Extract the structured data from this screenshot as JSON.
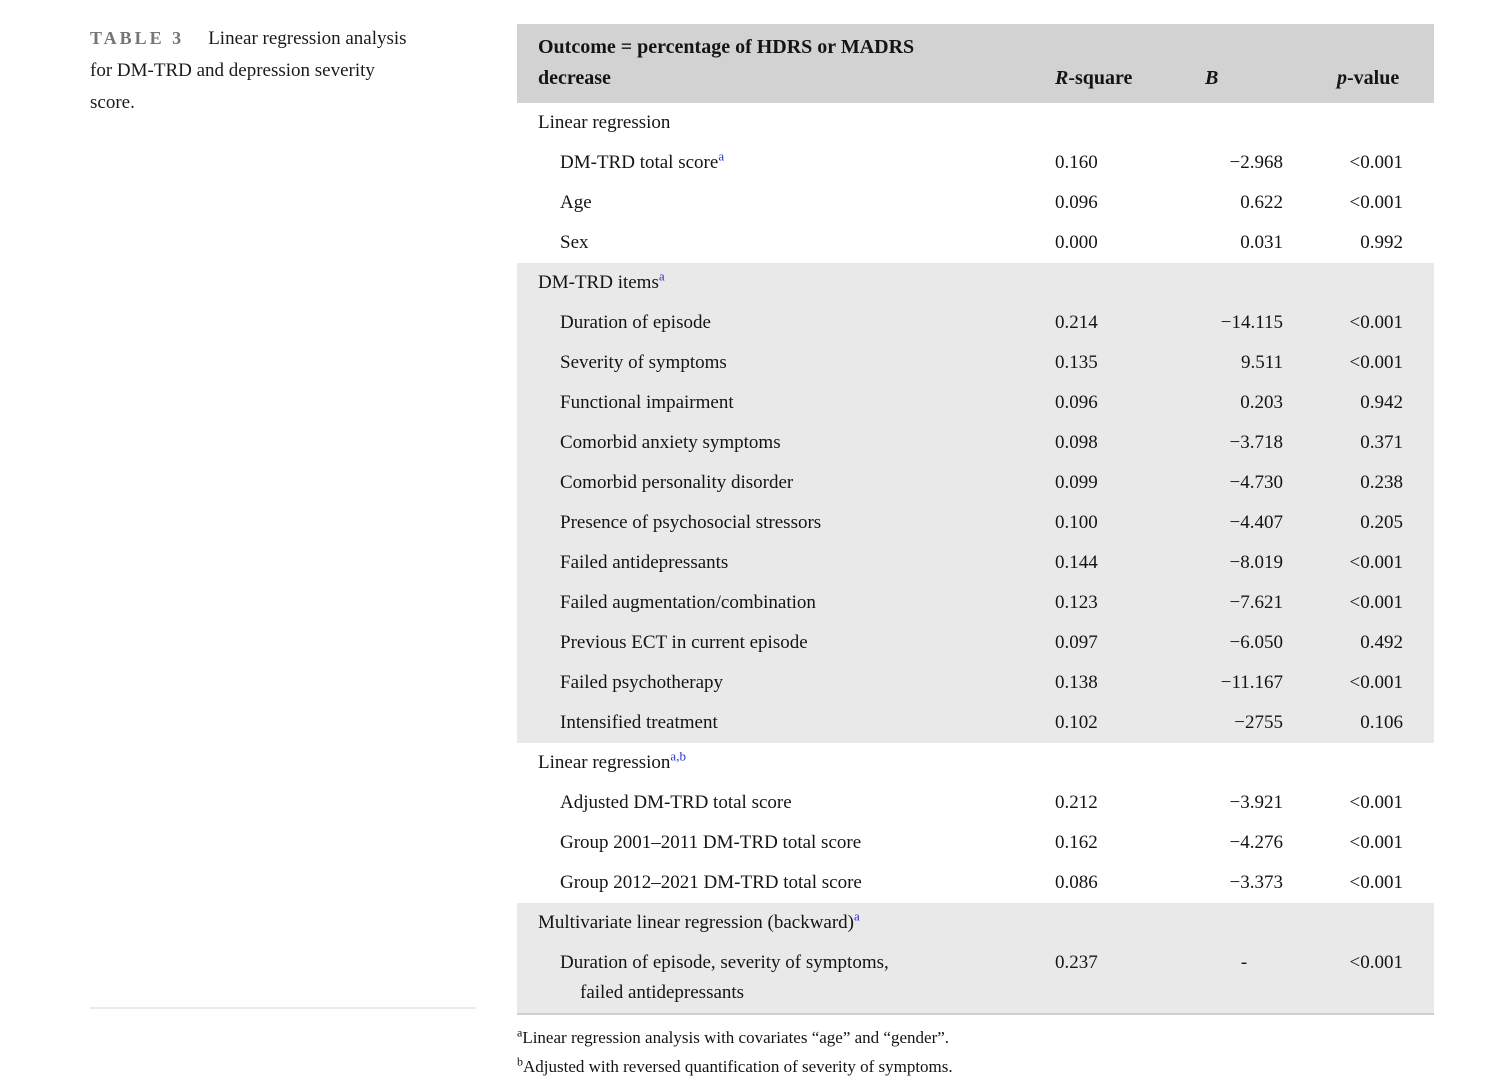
{
  "caption": {
    "tag": "TABLE 3",
    "text": "Linear regression analysis for DM-TRD and depression severity score."
  },
  "table": {
    "header": {
      "outcome_line1": "Outcome = percentage of HDRS or MADRS",
      "outcome_line2": "decrease",
      "col_r": {
        "italic": "R",
        "rest": "-square"
      },
      "col_b": {
        "italic": "B",
        "rest": ""
      },
      "col_p": {
        "italic": "p",
        "rest": "-value"
      }
    },
    "sections": [
      {
        "header": {
          "label": "Linear regression",
          "sup": ""
        },
        "rows": [
          {
            "label": "DM-TRD total score",
            "sup": "a",
            "r": "0.160",
            "b": "−2.968",
            "p": "<0.001"
          },
          {
            "label": "Age",
            "r": "0.096",
            "b": "0.622",
            "p": "<0.001"
          },
          {
            "label": "Sex",
            "r": "0.000",
            "b": "0.031",
            "p": "0.992"
          }
        ]
      },
      {
        "header": {
          "label": "DM-TRD items",
          "sup": "a"
        },
        "rows": [
          {
            "label": "Duration of episode",
            "r": "0.214",
            "b": "−14.115",
            "p": "<0.001"
          },
          {
            "label": "Severity of symptoms",
            "r": "0.135",
            "b": "9.511",
            "p": "<0.001"
          },
          {
            "label": "Functional impairment",
            "r": "0.096",
            "b": "0.203",
            "p": "0.942"
          },
          {
            "label": "Comorbid anxiety symptoms",
            "r": "0.098",
            "b": "−3.718",
            "p": "0.371"
          },
          {
            "label": "Comorbid personality disorder",
            "r": "0.099",
            "b": "−4.730",
            "p": "0.238"
          },
          {
            "label": "Presence of psychosocial stressors",
            "r": "0.100",
            "b": "−4.407",
            "p": "0.205"
          },
          {
            "label": "Failed antidepressants",
            "r": "0.144",
            "b": "−8.019",
            "p": "<0.001"
          },
          {
            "label": "Failed augmentation/combination",
            "r": "0.123",
            "b": "−7.621",
            "p": "<0.001"
          },
          {
            "label": "Previous ECT in current episode",
            "r": "0.097",
            "b": "−6.050",
            "p": "0.492"
          },
          {
            "label": "Failed psychotherapy",
            "r": "0.138",
            "b": "−11.167",
            "p": "<0.001"
          },
          {
            "label": "Intensified treatment",
            "r": "0.102",
            "b": "−2755",
            "p": "0.106"
          }
        ]
      },
      {
        "header": {
          "label": "Linear regression",
          "sup": "a,b"
        },
        "rows": [
          {
            "label": "Adjusted DM-TRD total score",
            "r": "0.212",
            "b": "−3.921",
            "p": "<0.001"
          },
          {
            "label": "Group 2001–2011 DM-TRD total score",
            "r": "0.162",
            "b": "−4.276",
            "p": "<0.001"
          },
          {
            "label": "Group 2012–2021 DM-TRD total score",
            "r": "0.086",
            "b": "−3.373",
            "p": "<0.001"
          }
        ]
      },
      {
        "header": {
          "label": "Multivariate linear regression (backward)",
          "sup": "a"
        },
        "rows": [
          {
            "label": "Duration of episode, severity of symptoms,",
            "label2": "failed antidepressants",
            "r": "0.237",
            "b": "-",
            "p": "<0.001"
          }
        ]
      }
    ]
  },
  "footnotes": [
    {
      "sup": "a",
      "text": "Linear regression analysis with covariates “age” and “gender”."
    },
    {
      "sup": "b",
      "text": "Adjusted with reversed quantification of severity of symptoms."
    }
  ],
  "colors": {
    "header_bg": "#d2d2d2",
    "band_bg": "#e9e9e9",
    "sup_blue": "#2832d7",
    "tag_gray": "#757575"
  }
}
